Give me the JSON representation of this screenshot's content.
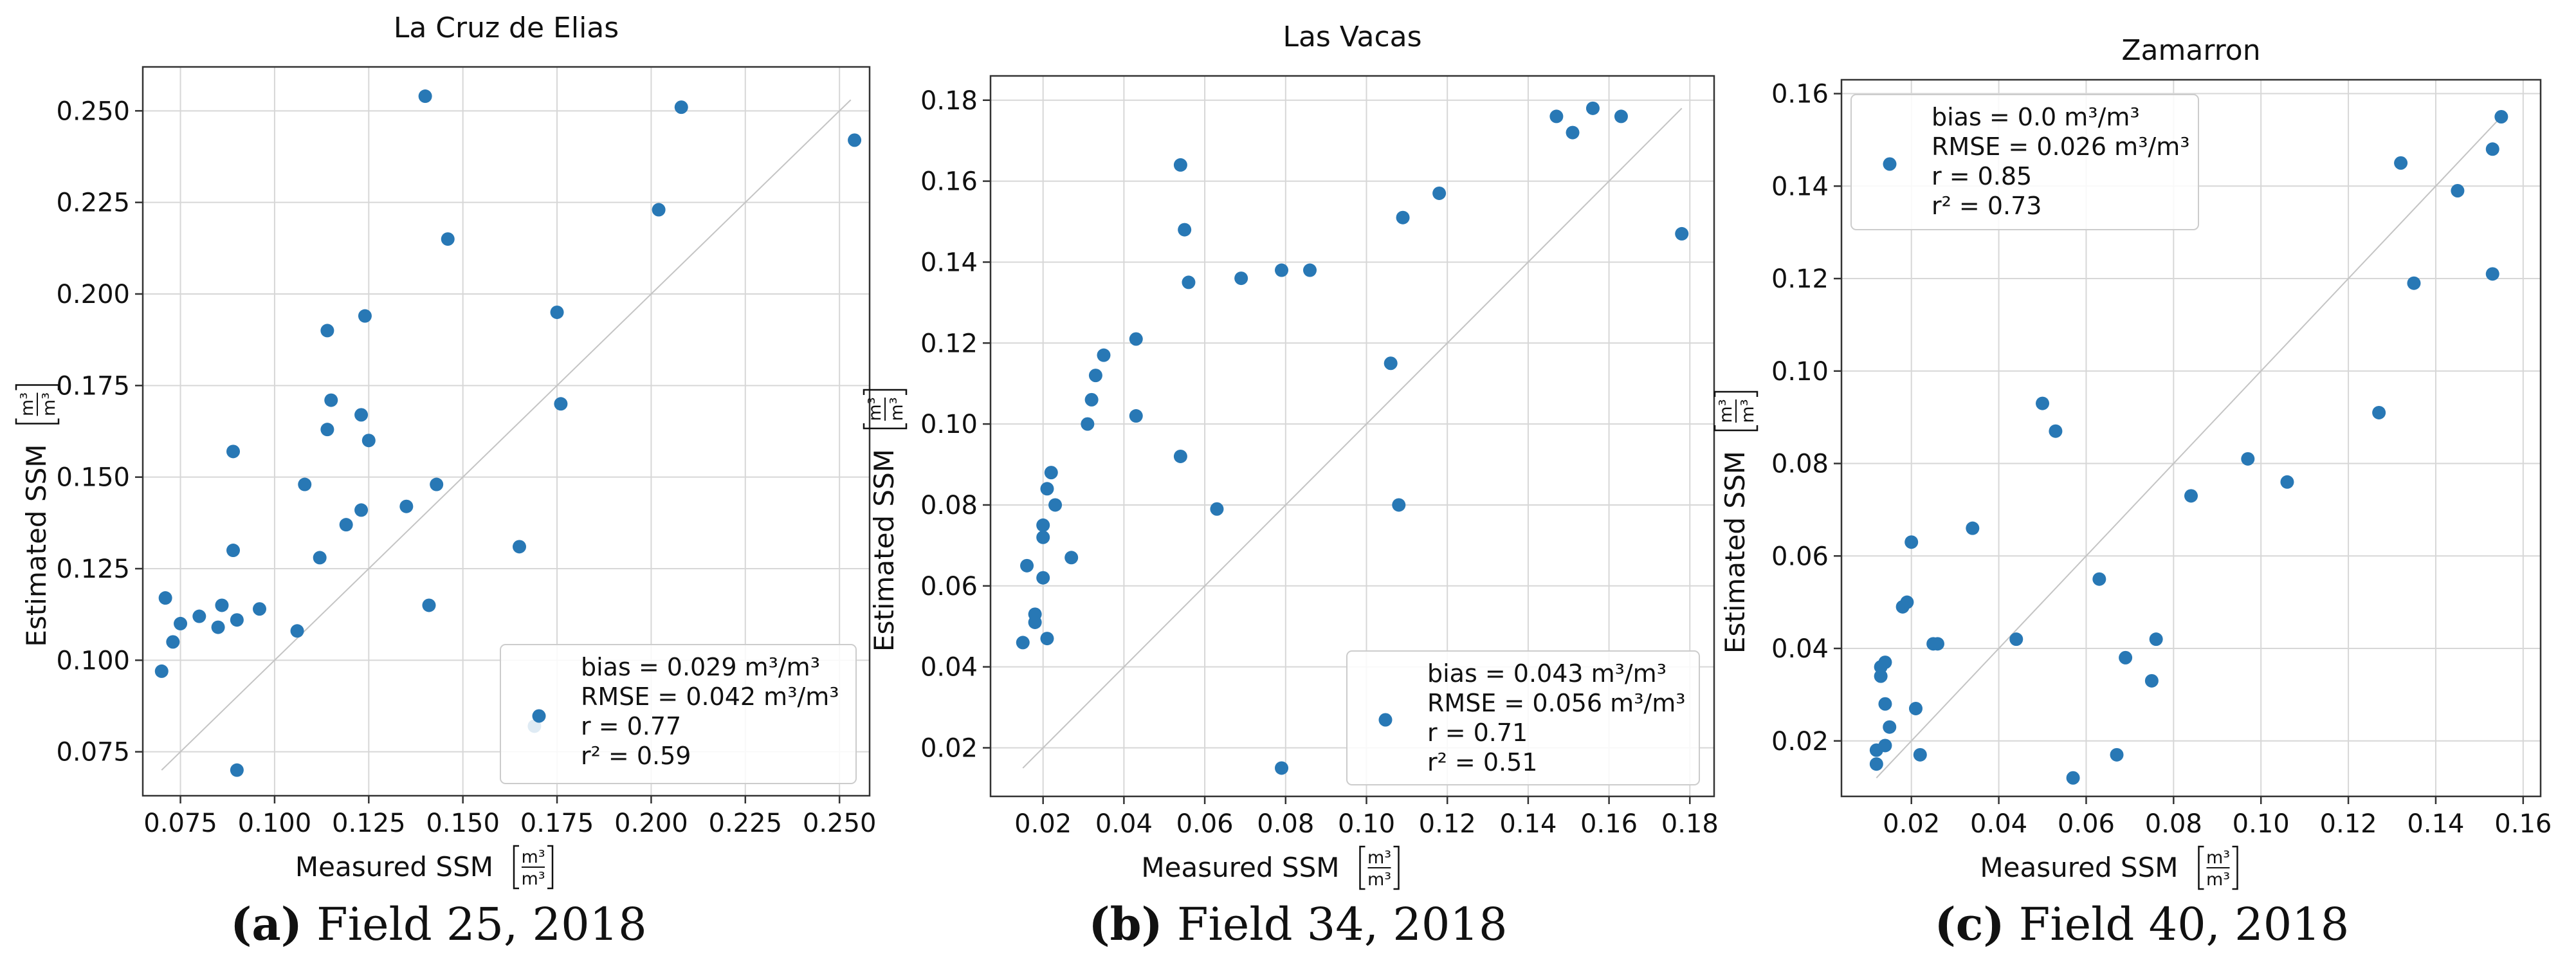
{
  "chart_data": [
    {
      "type": "scatter",
      "title": "La Cruz de Elias",
      "xlabel": "Measured SSM",
      "ylabel": "Estimated SSM",
      "unit_num": "m³",
      "unit_den": "m³",
      "xlim": [
        0.065,
        0.258
      ],
      "ylim": [
        0.063,
        0.262
      ],
      "xticks": [
        0.075,
        0.1,
        0.125,
        0.15,
        0.175,
        0.2,
        0.225,
        0.25
      ],
      "xtick_labels": [
        "0.075",
        "0.100",
        "0.125",
        "0.150",
        "0.175",
        "0.200",
        "0.225",
        "0.250"
      ],
      "yticks": [
        0.075,
        0.1,
        0.125,
        0.15,
        0.175,
        0.2,
        0.225,
        0.25
      ],
      "ytick_labels": [
        "0.075",
        "0.100",
        "0.125",
        "0.150",
        "0.175",
        "0.200",
        "0.225",
        "0.250"
      ],
      "grid": true,
      "one_to_one_line": [
        0.07,
        0.253
      ],
      "legend_position": "lower right",
      "legend": [
        "bias = 0.029 m³/m³",
        "RMSE = 0.042 m³/m³",
        "r = 0.77",
        "r² = 0.59"
      ],
      "marker_color": "#2878b5",
      "x": [
        0.07,
        0.071,
        0.073,
        0.075,
        0.08,
        0.085,
        0.086,
        0.089,
        0.089,
        0.09,
        0.09,
        0.096,
        0.106,
        0.108,
        0.112,
        0.114,
        0.114,
        0.115,
        0.119,
        0.123,
        0.123,
        0.124,
        0.125,
        0.135,
        0.14,
        0.141,
        0.143,
        0.146,
        0.165,
        0.169,
        0.175,
        0.176,
        0.202,
        0.208,
        0.254
      ],
      "y": [
        0.097,
        0.117,
        0.105,
        0.11,
        0.112,
        0.109,
        0.115,
        0.157,
        0.13,
        0.111,
        0.07,
        0.114,
        0.108,
        0.148,
        0.128,
        0.19,
        0.163,
        0.171,
        0.137,
        0.167,
        0.141,
        0.194,
        0.16,
        0.142,
        0.254,
        0.115,
        0.148,
        0.215,
        0.131,
        0.082,
        0.195,
        0.17,
        0.223,
        0.251,
        0.242
      ]
    },
    {
      "type": "scatter",
      "title": "Las Vacas",
      "xlabel": "Measured SSM",
      "ylabel": "Estimated SSM",
      "unit_num": "m³",
      "unit_den": "m³",
      "xlim": [
        0.007,
        0.186
      ],
      "ylim": [
        0.008,
        0.186
      ],
      "xticks": [
        0.02,
        0.04,
        0.06,
        0.08,
        0.1,
        0.12,
        0.14,
        0.16,
        0.18
      ],
      "xtick_labels": [
        "0.02",
        "0.04",
        "0.06",
        "0.08",
        "0.10",
        "0.12",
        "0.14",
        "0.16",
        "0.18"
      ],
      "yticks": [
        0.02,
        0.04,
        0.06,
        0.08,
        0.1,
        0.12,
        0.14,
        0.16,
        0.18
      ],
      "ytick_labels": [
        "0.02",
        "0.04",
        "0.06",
        "0.08",
        "0.10",
        "0.12",
        "0.14",
        "0.16",
        "0.18"
      ],
      "grid": true,
      "one_to_one_line": [
        0.015,
        0.178
      ],
      "legend_position": "lower right",
      "legend": [
        "bias = 0.043 m³/m³",
        "RMSE = 0.056 m³/m³",
        "r = 0.71",
        "r² = 0.51"
      ],
      "marker_color": "#2878b5",
      "x": [
        0.015,
        0.016,
        0.018,
        0.018,
        0.02,
        0.02,
        0.02,
        0.021,
        0.021,
        0.022,
        0.023,
        0.027,
        0.031,
        0.032,
        0.033,
        0.035,
        0.043,
        0.043,
        0.054,
        0.054,
        0.055,
        0.056,
        0.063,
        0.069,
        0.079,
        0.079,
        0.086,
        0.106,
        0.108,
        0.109,
        0.118,
        0.147,
        0.151,
        0.156,
        0.163,
        0.178
      ],
      "y": [
        0.046,
        0.065,
        0.053,
        0.051,
        0.075,
        0.072,
        0.062,
        0.047,
        0.084,
        0.088,
        0.08,
        0.067,
        0.1,
        0.106,
        0.112,
        0.117,
        0.121,
        0.102,
        0.164,
        0.092,
        0.148,
        0.135,
        0.079,
        0.136,
        0.138,
        0.015,
        0.138,
        0.115,
        0.08,
        0.151,
        0.157,
        0.176,
        0.172,
        0.178,
        0.176,
        0.147
      ]
    },
    {
      "type": "scatter",
      "title": "Zamarron",
      "xlabel": "Measured SSM",
      "ylabel": "Estimated SSM",
      "unit_num": "m³",
      "unit_den": "m³",
      "xlim": [
        0.004,
        0.164
      ],
      "ylim": [
        0.008,
        0.163
      ],
      "xticks": [
        0.02,
        0.04,
        0.06,
        0.08,
        0.1,
        0.12,
        0.14,
        0.16
      ],
      "xtick_labels": [
        "0.02",
        "0.04",
        "0.06",
        "0.08",
        "0.10",
        "0.12",
        "0.14",
        "0.16"
      ],
      "yticks": [
        0.02,
        0.04,
        0.06,
        0.08,
        0.1,
        0.12,
        0.14,
        0.16
      ],
      "ytick_labels": [
        "0.02",
        "0.04",
        "0.06",
        "0.08",
        "0.10",
        "0.12",
        "0.14",
        "0.16"
      ],
      "grid": true,
      "one_to_one_line": [
        0.012,
        0.155
      ],
      "legend_position": "upper left",
      "legend": [
        "bias = 0.0 m³/m³",
        "RMSE = 0.026 m³/m³",
        "r = 0.85",
        "r² = 0.73"
      ],
      "marker_color": "#2878b5",
      "x": [
        0.012,
        0.012,
        0.013,
        0.013,
        0.014,
        0.014,
        0.014,
        0.015,
        0.018,
        0.019,
        0.02,
        0.021,
        0.022,
        0.025,
        0.026,
        0.034,
        0.044,
        0.05,
        0.053,
        0.057,
        0.063,
        0.067,
        0.069,
        0.075,
        0.076,
        0.084,
        0.097,
        0.106,
        0.127,
        0.132,
        0.135,
        0.145,
        0.153,
        0.153,
        0.155
      ],
      "y": [
        0.018,
        0.015,
        0.036,
        0.034,
        0.037,
        0.028,
        0.019,
        0.023,
        0.049,
        0.05,
        0.063,
        0.027,
        0.017,
        0.041,
        0.041,
        0.066,
        0.042,
        0.093,
        0.087,
        0.012,
        0.055,
        0.017,
        0.038,
        0.033,
        0.042,
        0.073,
        0.081,
        0.076,
        0.091,
        0.145,
        0.119,
        0.139,
        0.148,
        0.121,
        0.155
      ]
    }
  ],
  "captions": [
    {
      "label": "(a)",
      "text": "Field 25, 2018"
    },
    {
      "label": "(b)",
      "text": "Field 34, 2018"
    },
    {
      "label": "(c)",
      "text": "Field 40, 2018"
    }
  ]
}
